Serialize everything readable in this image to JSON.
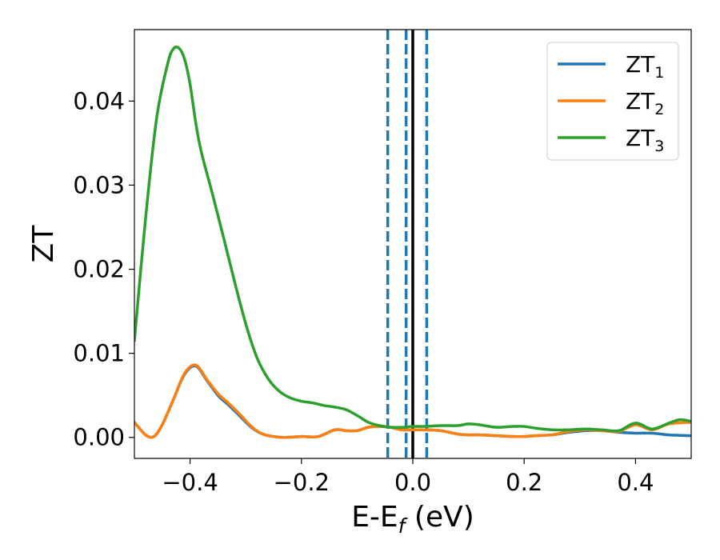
{
  "chart_data": {
    "type": "line",
    "xlabel_main": "E-E",
    "xlabel_sub": "f",
    "xlabel_unit": " (eV)",
    "ylabel": "ZT",
    "xlim": [
      -0.5,
      0.5
    ],
    "ylim": [
      -0.0025,
      0.0485
    ],
    "xticks": [
      -0.4,
      -0.2,
      0.0,
      0.2,
      0.4
    ],
    "xtick_labels": [
      "−0.4",
      "−0.2",
      "0.0",
      "0.2",
      "0.4"
    ],
    "yticks": [
      0.0,
      0.01,
      0.02,
      0.03,
      0.04
    ],
    "ytick_labels": [
      "0.00",
      "0.01",
      "0.02",
      "0.03",
      "0.04"
    ],
    "legend_position": "top-right",
    "vertical_lines": [
      {
        "x": -0.045,
        "style": "dashed",
        "color": "#1f77b4"
      },
      {
        "x": -0.012,
        "style": "dashed",
        "color": "#1f77b4"
      },
      {
        "x": 0.025,
        "style": "dashed",
        "color": "#1f77b4"
      },
      {
        "x": 0.0,
        "style": "solid",
        "color": "#000000"
      }
    ],
    "series": [
      {
        "name": "ZT",
        "subscript": "1",
        "color": "#1f77b4",
        "x": [
          -0.5,
          -0.48,
          -0.465,
          -0.45,
          -0.43,
          -0.41,
          -0.39,
          -0.37,
          -0.35,
          -0.33,
          -0.31,
          -0.29,
          -0.27,
          -0.25,
          -0.23,
          -0.2,
          -0.17,
          -0.14,
          -0.12,
          -0.1,
          -0.08,
          -0.06,
          -0.04,
          -0.02,
          0.0,
          0.02,
          0.05,
          0.08,
          0.1,
          0.12,
          0.15,
          0.18,
          0.2,
          0.22,
          0.25,
          0.28,
          0.31,
          0.34,
          0.37,
          0.4,
          0.43,
          0.46,
          0.5
        ],
        "y": [
          0.0018,
          0.0003,
          0.0001,
          0.0015,
          0.0045,
          0.0075,
          0.0085,
          0.0068,
          0.005,
          0.0038,
          0.0025,
          0.0012,
          0.0004,
          0.0001,
          0.0,
          0.0001,
          0.0001,
          0.0009,
          0.0008,
          0.0008,
          0.0012,
          0.0013,
          0.0012,
          0.0009,
          0.0009,
          0.0009,
          0.0008,
          0.0004,
          0.0003,
          0.0003,
          0.0002,
          0.0001,
          0.0001,
          0.0002,
          0.0003,
          0.0006,
          0.0008,
          0.0008,
          0.0006,
          0.0005,
          0.0005,
          0.0003,
          0.0002
        ]
      },
      {
        "name": "ZT",
        "subscript": "2",
        "color": "#ff7f0e",
        "x": [
          -0.5,
          -0.48,
          -0.465,
          -0.45,
          -0.43,
          -0.41,
          -0.39,
          -0.37,
          -0.35,
          -0.33,
          -0.31,
          -0.29,
          -0.27,
          -0.25,
          -0.23,
          -0.2,
          -0.17,
          -0.14,
          -0.12,
          -0.1,
          -0.08,
          -0.06,
          -0.04,
          -0.02,
          0.0,
          0.02,
          0.05,
          0.08,
          0.1,
          0.12,
          0.15,
          0.18,
          0.2,
          0.22,
          0.25,
          0.28,
          0.31,
          0.34,
          0.37,
          0.4,
          0.43,
          0.46,
          0.5
        ],
        "y": [
          0.0018,
          0.0003,
          0.0001,
          0.0015,
          0.0045,
          0.0076,
          0.0086,
          0.0069,
          0.0052,
          0.004,
          0.0027,
          0.0013,
          0.0004,
          0.0001,
          0.0,
          0.0001,
          0.0001,
          0.0009,
          0.0008,
          0.0008,
          0.0012,
          0.0013,
          0.0012,
          0.0009,
          0.0009,
          0.0009,
          0.0008,
          0.0004,
          0.0003,
          0.0003,
          0.0002,
          0.0001,
          0.0001,
          0.0002,
          0.0003,
          0.0007,
          0.0009,
          0.0008,
          0.0007,
          0.0015,
          0.0009,
          0.0016,
          0.0018
        ]
      },
      {
        "name": "ZT",
        "subscript": "3",
        "color": "#2ca02c",
        "x": [
          -0.5,
          -0.48,
          -0.46,
          -0.44,
          -0.43,
          -0.42,
          -0.41,
          -0.4,
          -0.39,
          -0.38,
          -0.36,
          -0.34,
          -0.32,
          -0.3,
          -0.28,
          -0.26,
          -0.24,
          -0.22,
          -0.2,
          -0.18,
          -0.16,
          -0.14,
          -0.12,
          -0.1,
          -0.08,
          -0.06,
          -0.04,
          -0.02,
          0.0,
          0.02,
          0.05,
          0.08,
          0.1,
          0.12,
          0.15,
          0.18,
          0.2,
          0.22,
          0.25,
          0.28,
          0.31,
          0.34,
          0.37,
          0.4,
          0.43,
          0.46,
          0.48,
          0.5
        ],
        "y": [
          0.0115,
          0.026,
          0.038,
          0.0445,
          0.0462,
          0.0463,
          0.045,
          0.042,
          0.0375,
          0.034,
          0.029,
          0.0238,
          0.0185,
          0.0135,
          0.0095,
          0.007,
          0.0055,
          0.0047,
          0.0043,
          0.0041,
          0.0038,
          0.0036,
          0.0033,
          0.0026,
          0.0018,
          0.0014,
          0.0012,
          0.0012,
          0.0013,
          0.0013,
          0.0014,
          0.0014,
          0.0016,
          0.0015,
          0.0012,
          0.0013,
          0.0013,
          0.0011,
          0.0009,
          0.0009,
          0.001,
          0.0009,
          0.0008,
          0.0017,
          0.001,
          0.0017,
          0.0021,
          0.0019
        ]
      }
    ]
  }
}
